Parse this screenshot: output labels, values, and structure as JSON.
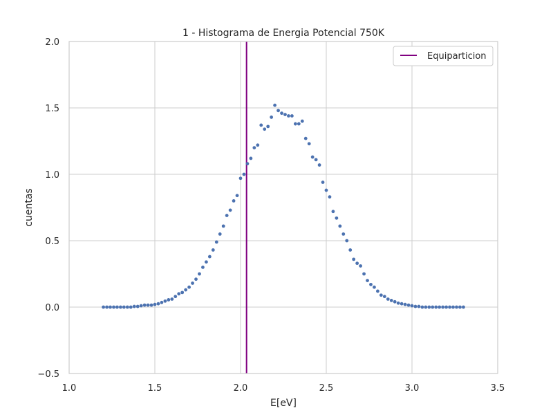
{
  "chart_data": {
    "type": "scatter",
    "title": "1 - Histograma de Energia Potencial 750K",
    "xlabel": "E[eV]",
    "ylabel": "cuentas",
    "xlim": [
      1.0,
      3.5
    ],
    "ylim": [
      -0.5,
      2.0
    ],
    "xticks": [
      "1.0",
      "1.5",
      "2.0",
      "2.5",
      "3.0",
      "3.5"
    ],
    "yticks": [
      "−0.5",
      "0.0",
      "0.5",
      "1.0",
      "1.5",
      "2.0"
    ],
    "grid": true,
    "legend_position": "top-right",
    "vline": {
      "name": "Equiparticion",
      "x": 2.035,
      "color": "#800080"
    },
    "series": [
      {
        "color": "#4c72b0",
        "x": [
          1.2,
          1.22,
          1.24,
          1.26,
          1.28,
          1.3,
          1.32,
          1.34,
          1.36,
          1.38,
          1.4,
          1.42,
          1.44,
          1.46,
          1.48,
          1.5,
          1.52,
          1.54,
          1.56,
          1.58,
          1.6,
          1.62,
          1.64,
          1.66,
          1.68,
          1.7,
          1.72,
          1.74,
          1.76,
          1.78,
          1.8,
          1.82,
          1.84,
          1.86,
          1.88,
          1.9,
          1.92,
          1.94,
          1.96,
          1.98,
          2.0,
          2.02,
          2.04,
          2.06,
          2.08,
          2.1,
          2.12,
          2.14,
          2.16,
          2.18,
          2.2,
          2.22,
          2.24,
          2.26,
          2.28,
          2.3,
          2.32,
          2.34,
          2.36,
          2.38,
          2.4,
          2.42,
          2.44,
          2.46,
          2.48,
          2.5,
          2.52,
          2.54,
          2.56,
          2.58,
          2.6,
          2.62,
          2.64,
          2.66,
          2.68,
          2.7,
          2.72,
          2.74,
          2.76,
          2.78,
          2.8,
          2.82,
          2.84,
          2.86,
          2.88,
          2.9,
          2.92,
          2.94,
          2.96,
          2.98,
          3.0,
          3.02,
          3.04,
          3.06,
          3.08,
          3.1,
          3.12,
          3.14,
          3.16,
          3.18,
          3.2,
          3.22,
          3.24,
          3.26,
          3.28,
          3.3
        ],
        "y": [
          0.0,
          0.0,
          0.0,
          0.0,
          0.0,
          0.0,
          0.0,
          0.0,
          0.0,
          0.005,
          0.005,
          0.01,
          0.015,
          0.015,
          0.015,
          0.02,
          0.025,
          0.035,
          0.045,
          0.055,
          0.06,
          0.08,
          0.1,
          0.11,
          0.13,
          0.15,
          0.18,
          0.21,
          0.25,
          0.3,
          0.34,
          0.38,
          0.43,
          0.49,
          0.55,
          0.61,
          0.69,
          0.73,
          0.8,
          0.84,
          0.97,
          1.0,
          1.08,
          1.12,
          1.2,
          1.22,
          1.37,
          1.34,
          1.36,
          1.43,
          1.52,
          1.48,
          1.46,
          1.45,
          1.44,
          1.44,
          1.38,
          1.38,
          1.4,
          1.27,
          1.23,
          1.13,
          1.11,
          1.07,
          0.94,
          0.88,
          0.83,
          0.72,
          0.67,
          0.61,
          0.55,
          0.5,
          0.43,
          0.36,
          0.33,
          0.31,
          0.25,
          0.2,
          0.17,
          0.15,
          0.12,
          0.09,
          0.08,
          0.06,
          0.05,
          0.04,
          0.03,
          0.025,
          0.02,
          0.015,
          0.01,
          0.005,
          0.005,
          0.0,
          0.0,
          0.0,
          0.0,
          0.0,
          0.0,
          0.0,
          0.0,
          0.0,
          0.0,
          0.0,
          0.0,
          0.0
        ]
      }
    ]
  }
}
